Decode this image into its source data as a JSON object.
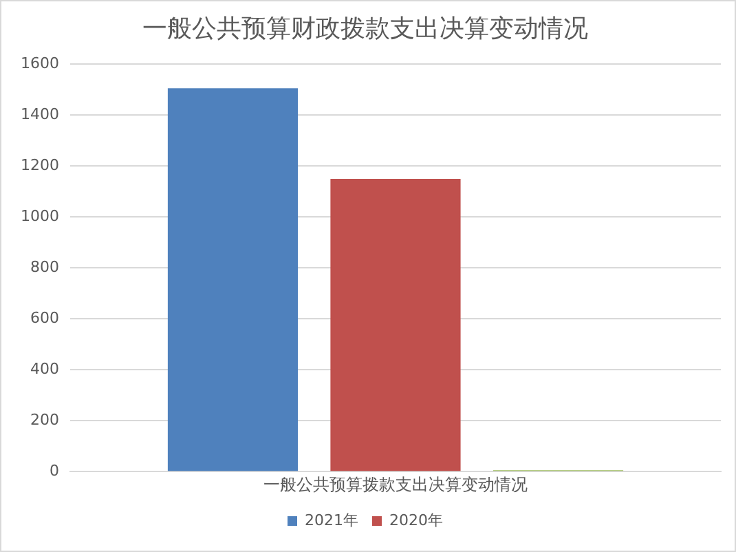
{
  "chart_data": {
    "type": "bar",
    "title": "一般公共预算财政拨款支出决算变动情况",
    "categories": [
      "一般公共预算拨款支出决算变动情况"
    ],
    "series": [
      {
        "name": "2021年",
        "color": "#4f81bd",
        "values": [
          1505
        ]
      },
      {
        "name": "2020年",
        "color": "#c0504d",
        "values": [
          1149
        ]
      },
      {
        "color": "#9bbb59",
        "values": [
          5
        ]
      }
    ],
    "ylim": [
      0,
      1600
    ],
    "yticks": [
      0,
      200,
      400,
      600,
      800,
      1000,
      1200,
      1400,
      1600
    ],
    "grid": "y",
    "legend": "bottom"
  }
}
